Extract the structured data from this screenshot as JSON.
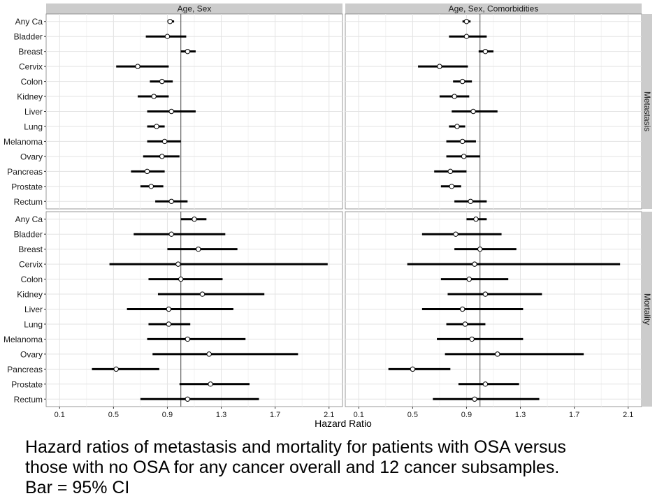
{
  "chart_data": {
    "type": "forest",
    "xlabel": "Hazard Ratio",
    "xlim": [
      0.0,
      2.2
    ],
    "x_ticks": [
      "0.1",
      "0.5",
      "0.9",
      "1.3",
      "1.7",
      "2.1"
    ],
    "reference_line": 1.0,
    "categories": [
      "Any Ca",
      "Bladder",
      "Breast",
      "Cervix",
      "Colon",
      "Kidney",
      "Liver",
      "Lung",
      "Melanoma",
      "Ovary",
      "Pancreas",
      "Prostate",
      "Rectum"
    ],
    "columns": [
      "Age, Sex",
      "Age, Sex, Comorbidities"
    ],
    "rows": [
      "Metastasis",
      "Mortality"
    ],
    "panels": [
      {
        "column": "Age, Sex",
        "row": "Metastasis",
        "estimates": [
          {
            "hr": 0.92,
            "lo": 0.9,
            "hi": 0.95
          },
          {
            "hr": 0.9,
            "lo": 0.74,
            "hi": 1.04
          },
          {
            "hr": 1.05,
            "lo": 1.0,
            "hi": 1.11
          },
          {
            "hr": 0.68,
            "lo": 0.52,
            "hi": 0.91
          },
          {
            "hr": 0.86,
            "lo": 0.77,
            "hi": 0.94
          },
          {
            "hr": 0.8,
            "lo": 0.68,
            "hi": 0.91
          },
          {
            "hr": 0.93,
            "lo": 0.75,
            "hi": 1.11
          },
          {
            "hr": 0.82,
            "lo": 0.75,
            "hi": 0.88
          },
          {
            "hr": 0.88,
            "lo": 0.75,
            "hi": 1.0
          },
          {
            "hr": 0.86,
            "lo": 0.72,
            "hi": 0.99
          },
          {
            "hr": 0.75,
            "lo": 0.63,
            "hi": 0.88
          },
          {
            "hr": 0.78,
            "lo": 0.7,
            "hi": 0.87
          },
          {
            "hr": 0.93,
            "lo": 0.81,
            "hi": 1.05
          }
        ]
      },
      {
        "column": "Age, Sex, Comorbidities",
        "row": "Metastasis",
        "estimates": [
          {
            "hr": 0.9,
            "lo": 0.87,
            "hi": 0.93
          },
          {
            "hr": 0.9,
            "lo": 0.77,
            "hi": 1.05
          },
          {
            "hr": 1.04,
            "lo": 0.99,
            "hi": 1.1
          },
          {
            "hr": 0.7,
            "lo": 0.54,
            "hi": 0.91
          },
          {
            "hr": 0.87,
            "lo": 0.8,
            "hi": 0.94
          },
          {
            "hr": 0.81,
            "lo": 0.7,
            "hi": 0.92
          },
          {
            "hr": 0.95,
            "lo": 0.79,
            "hi": 1.13
          },
          {
            "hr": 0.83,
            "lo": 0.77,
            "hi": 0.89
          },
          {
            "hr": 0.87,
            "lo": 0.75,
            "hi": 0.97
          },
          {
            "hr": 0.88,
            "lo": 0.75,
            "hi": 1.0
          },
          {
            "hr": 0.78,
            "lo": 0.66,
            "hi": 0.9
          },
          {
            "hr": 0.79,
            "lo": 0.71,
            "hi": 0.86
          },
          {
            "hr": 0.93,
            "lo": 0.81,
            "hi": 1.05
          }
        ]
      },
      {
        "column": "Age, Sex",
        "row": "Mortality",
        "estimates": [
          {
            "hr": 1.1,
            "lo": 1.0,
            "hi": 1.19
          },
          {
            "hr": 0.93,
            "lo": 0.65,
            "hi": 1.33
          },
          {
            "hr": 1.13,
            "lo": 0.9,
            "hi": 1.42
          },
          {
            "hr": 0.98,
            "lo": 0.47,
            "hi": 2.09
          },
          {
            "hr": 1.0,
            "lo": 0.76,
            "hi": 1.31
          },
          {
            "hr": 1.16,
            "lo": 0.83,
            "hi": 1.62
          },
          {
            "hr": 0.91,
            "lo": 0.6,
            "hi": 1.39
          },
          {
            "hr": 0.91,
            "lo": 0.76,
            "hi": 1.07
          },
          {
            "hr": 1.05,
            "lo": 0.75,
            "hi": 1.48
          },
          {
            "hr": 1.21,
            "lo": 0.79,
            "hi": 1.87
          },
          {
            "hr": 0.52,
            "lo": 0.34,
            "hi": 0.84
          },
          {
            "hr": 1.22,
            "lo": 0.99,
            "hi": 1.51
          },
          {
            "hr": 1.05,
            "lo": 0.7,
            "hi": 1.58
          }
        ]
      },
      {
        "column": "Age, Sex, Comorbidities",
        "row": "Mortality",
        "estimates": [
          {
            "hr": 0.97,
            "lo": 0.9,
            "hi": 1.05
          },
          {
            "hr": 0.82,
            "lo": 0.57,
            "hi": 1.16
          },
          {
            "hr": 1.0,
            "lo": 0.81,
            "hi": 1.27
          },
          {
            "hr": 0.96,
            "lo": 0.46,
            "hi": 2.04
          },
          {
            "hr": 0.92,
            "lo": 0.71,
            "hi": 1.21
          },
          {
            "hr": 1.04,
            "lo": 0.76,
            "hi": 1.46
          },
          {
            "hr": 0.87,
            "lo": 0.57,
            "hi": 1.32
          },
          {
            "hr": 0.89,
            "lo": 0.75,
            "hi": 1.04
          },
          {
            "hr": 0.94,
            "lo": 0.68,
            "hi": 1.32
          },
          {
            "hr": 1.13,
            "lo": 0.74,
            "hi": 1.77
          },
          {
            "hr": 0.5,
            "lo": 0.32,
            "hi": 0.78
          },
          {
            "hr": 1.04,
            "lo": 0.84,
            "hi": 1.29
          },
          {
            "hr": 0.96,
            "lo": 0.65,
            "hi": 1.44
          }
        ]
      }
    ]
  },
  "caption": {
    "lines": [
      "Hazard ratios of metastasis and mortality for patients with OSA versus",
      "those with no OSA for any cancer overall and 12 cancer subsamples.",
      "Bar = 95% CI"
    ]
  }
}
